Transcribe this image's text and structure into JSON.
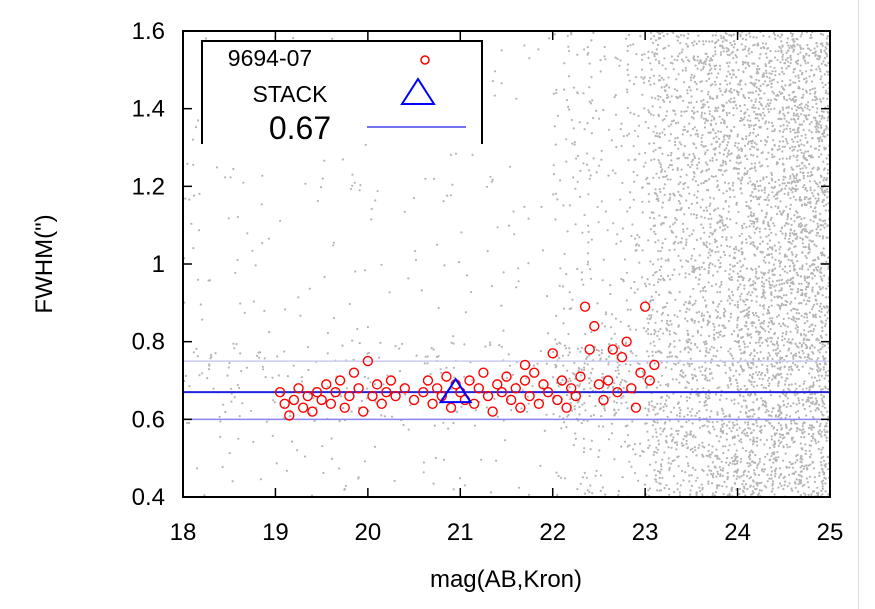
{
  "chart_data": {
    "type": "scatter",
    "title": "",
    "xlabel": "mag(AB,Kron)",
    "ylabel": "FWHM(\")",
    "xlim": [
      18,
      25
    ],
    "ylim": [
      0.4,
      1.6
    ],
    "xticks": [
      "18",
      "19",
      "20",
      "21",
      "22",
      "23",
      "24",
      "25"
    ],
    "yticks": [
      "0.4",
      "0.6",
      "0.8",
      "1",
      "1.2",
      "1.4",
      "1.6"
    ],
    "grid": false,
    "legend": {
      "placement": "top-left",
      "entries": [
        {
          "label": "9694-07",
          "marker": "circle",
          "color": "#ff0000"
        },
        {
          "label": "STACK",
          "marker": "triangle",
          "color": "#0000ff"
        },
        {
          "label": "0.67",
          "marker": "line",
          "color": "#2222dd"
        }
      ]
    },
    "hlines": [
      {
        "y": 0.67,
        "color": "#2222dd",
        "role": "median"
      },
      {
        "y": 0.6,
        "color": "#8888ee",
        "role": "lower"
      },
      {
        "y": 0.75,
        "color": "#ccccf5",
        "role": "upper"
      }
    ],
    "series": [
      {
        "name": "9694-07",
        "marker": "circle",
        "color": "#ff0000",
        "description_points": [
          [
            19.05,
            0.67
          ],
          [
            19.1,
            0.64
          ],
          [
            19.15,
            0.61
          ],
          [
            19.2,
            0.65
          ],
          [
            19.3,
            0.63
          ],
          [
            19.35,
            0.66
          ],
          [
            19.4,
            0.62
          ],
          [
            19.45,
            0.67
          ],
          [
            19.5,
            0.65
          ],
          [
            19.55,
            0.69
          ],
          [
            19.6,
            0.64
          ],
          [
            19.65,
            0.67
          ],
          [
            19.7,
            0.7
          ],
          [
            19.75,
            0.63
          ],
          [
            19.8,
            0.66
          ],
          [
            19.85,
            0.72
          ],
          [
            19.9,
            0.68
          ],
          [
            19.95,
            0.62
          ],
          [
            20.0,
            0.75
          ],
          [
            20.05,
            0.66
          ],
          [
            20.1,
            0.69
          ],
          [
            20.15,
            0.64
          ],
          [
            20.2,
            0.67
          ],
          [
            20.3,
            0.66
          ],
          [
            20.4,
            0.68
          ],
          [
            20.5,
            0.65
          ],
          [
            20.6,
            0.67
          ],
          [
            20.65,
            0.7
          ],
          [
            20.7,
            0.64
          ],
          [
            20.75,
            0.68
          ],
          [
            20.8,
            0.66
          ],
          [
            20.85,
            0.71
          ],
          [
            20.9,
            0.63
          ],
          [
            20.95,
            0.69
          ],
          [
            21.0,
            0.67
          ],
          [
            21.05,
            0.65
          ],
          [
            21.1,
            0.7
          ],
          [
            21.15,
            0.64
          ],
          [
            21.2,
            0.68
          ],
          [
            21.25,
            0.72
          ],
          [
            21.3,
            0.66
          ],
          [
            21.35,
            0.62
          ],
          [
            21.4,
            0.69
          ],
          [
            21.45,
            0.67
          ],
          [
            21.5,
            0.71
          ],
          [
            21.55,
            0.65
          ],
          [
            21.6,
            0.68
          ],
          [
            21.65,
            0.63
          ],
          [
            21.7,
            0.7
          ],
          [
            21.75,
            0.66
          ],
          [
            21.8,
            0.72
          ],
          [
            21.85,
            0.64
          ],
          [
            21.9,
            0.69
          ],
          [
            21.95,
            0.67
          ],
          [
            22.0,
            0.77
          ],
          [
            22.05,
            0.65
          ],
          [
            22.1,
            0.7
          ],
          [
            22.15,
            0.63
          ],
          [
            22.2,
            0.68
          ],
          [
            22.25,
            0.66
          ],
          [
            22.3,
            0.71
          ],
          [
            22.35,
            0.89
          ],
          [
            22.4,
            0.78
          ],
          [
            22.45,
            0.84
          ],
          [
            22.5,
            0.69
          ],
          [
            22.55,
            0.65
          ],
          [
            22.6,
            0.7
          ],
          [
            22.65,
            0.78
          ],
          [
            22.7,
            0.67
          ],
          [
            22.75,
            0.76
          ],
          [
            22.8,
            0.8
          ],
          [
            22.85,
            0.68
          ],
          [
            22.9,
            0.63
          ],
          [
            22.95,
            0.72
          ],
          [
            23.0,
            0.89
          ],
          [
            23.05,
            0.7
          ],
          [
            23.1,
            0.74
          ],
          [
            19.25,
            0.68
          ],
          [
            20.25,
            0.7
          ],
          [
            21.7,
            0.74
          ]
        ]
      },
      {
        "name": "STACK",
        "marker": "triangle",
        "color": "#0000ff",
        "description_points": [
          [
            20.95,
            0.67
          ]
        ]
      },
      {
        "name": "background",
        "marker": "dot",
        "color": "#b4b4b4",
        "description": "dense grey field-source scatter, sparse below mag 22 and dense between mag 23 and 25 across FWHM 0.4-1.6"
      }
    ]
  }
}
